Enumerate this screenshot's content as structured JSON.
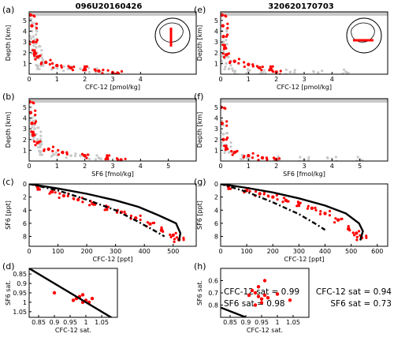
{
  "figure": {
    "titles": {
      "left": "096U20160426",
      "right": "320620170703"
    },
    "stats": {
      "left": [
        "CFC-12 sat = 0.99",
        "SF6 sat = 0.98"
      ],
      "right": [
        "CFC-12 sat = 0.94",
        "SF6 sat = 0.73"
      ]
    },
    "colors": {
      "observed": "#ff0000",
      "background": "#c8c8c8",
      "model": "#000000"
    },
    "legend": "none",
    "grid": false
  },
  "chart_data": [
    {
      "id": "a",
      "label": "(a)",
      "type": "scatter",
      "title": "096U20160426",
      "xlabel": "CFC-12 [pmol/kg]",
      "ylabel": "Depth [km]",
      "xlim": [
        0,
        6
      ],
      "ylim": [
        5.8,
        0
      ],
      "xticks": [
        "0",
        "1",
        "2",
        "3",
        "4"
      ],
      "yticks": [
        "1",
        "2",
        "3",
        "4",
        "5"
      ],
      "inset": {
        "type": "polar-map",
        "track": "meridional section"
      },
      "series": [
        {
          "name": "",
          "color": "#c8c8c8",
          "points": [
            [
              0.3,
              0.7
            ],
            [
              0.9,
              0.6
            ],
            [
              1.4,
              0.5
            ],
            [
              2.0,
              0.4
            ],
            [
              2.5,
              0.3
            ],
            [
              0.5,
              1.0
            ],
            [
              0.35,
              1.5
            ],
            [
              0.28,
              2.0
            ],
            [
              0.25,
              2.5
            ],
            [
              0.2,
              3.0
            ],
            [
              0.15,
              3.5
            ],
            [
              0.1,
              4.0
            ],
            [
              0.08,
              4.5
            ],
            [
              0.05,
              5.0
            ]
          ]
        },
        {
          "name": "",
          "color": "#ff0000",
          "points": [
            [
              0.05,
              5.5
            ],
            [
              0.1,
              4.5
            ],
            [
              0.15,
              3.0
            ],
            [
              0.2,
              2.0
            ],
            [
              0.3,
              1.6
            ],
            [
              0.6,
              1.1
            ],
            [
              1.0,
              0.8
            ],
            [
              1.5,
              0.6
            ],
            [
              2.0,
              0.5
            ],
            [
              2.5,
              0.3
            ],
            [
              3.0,
              0.15
            ],
            [
              3.2,
              0.05
            ]
          ]
        }
      ]
    },
    {
      "id": "b",
      "label": "(b)",
      "type": "scatter",
      "xlabel": "SF6 [fmol/kg]",
      "ylabel": "Depth [km]",
      "xlim": [
        0,
        6
      ],
      "ylim": [
        5.8,
        0
      ],
      "xticks": [
        "0",
        "1",
        "2",
        "3",
        "4",
        "5"
      ],
      "yticks": [
        "1",
        "2",
        "3",
        "4",
        "5"
      ],
      "series": [
        {
          "name": "",
          "color": "#c8c8c8",
          "points": [
            [
              0.4,
              0.8
            ],
            [
              0.9,
              0.6
            ],
            [
              1.5,
              0.5
            ],
            [
              2.0,
              0.4
            ],
            [
              2.5,
              0.3
            ],
            [
              0.4,
              1.5
            ],
            [
              0.3,
              2.0
            ],
            [
              0.25,
              2.5
            ],
            [
              0.2,
              3.0
            ],
            [
              0.15,
              3.5
            ],
            [
              0.1,
              4.0
            ]
          ]
        },
        {
          "name": "",
          "color": "#ff0000",
          "points": [
            [
              0.02,
              5.5
            ],
            [
              0.05,
              4.5
            ],
            [
              0.1,
              3.5
            ],
            [
              0.15,
              2.5
            ],
            [
              0.3,
              1.7
            ],
            [
              0.7,
              1.1
            ],
            [
              1.2,
              0.8
            ],
            [
              2.0,
              0.5
            ],
            [
              2.8,
              0.3
            ],
            [
              3.3,
              0.1
            ]
          ]
        }
      ]
    },
    {
      "id": "c",
      "label": "(c)",
      "type": "scatter",
      "xlabel": "CFC-12 [ppt]",
      "ylabel": "SF6 [ppt]",
      "xlim": [
        0,
        580
      ],
      "ylim": [
        0,
        9.5
      ],
      "xticks": [
        "0",
        "100",
        "200",
        "300",
        "400",
        "500"
      ],
      "yticks": [
        "0",
        "2",
        "4",
        "6",
        "8"
      ],
      "series": [
        {
          "name": "",
          "color": "#ff0000",
          "points": [
            [
              30,
              0.5
            ],
            [
              80,
              1.2
            ],
            [
              120,
              1.8
            ],
            [
              170,
              2.4
            ],
            [
              220,
              3.0
            ],
            [
              270,
              3.6
            ],
            [
              320,
              4.3
            ],
            [
              370,
              5.2
            ],
            [
              420,
              6.1
            ],
            [
              460,
              7.0
            ],
            [
              500,
              7.8
            ],
            [
              520,
              8.5
            ]
          ]
        },
        {
          "name": "",
          "color": "#000000",
          "line": "dash",
          "points": [
            [
              0,
              0
            ],
            [
              100,
              1.0
            ],
            [
              200,
              2.4
            ],
            [
              300,
              4.0
            ],
            [
              380,
              5.8
            ],
            [
              430,
              7.0
            ],
            [
              470,
              8.0
            ]
          ]
        },
        {
          "name": "",
          "color": "#000000",
          "line": "solid",
          "points": [
            [
              0,
              0
            ],
            [
              100,
              0.7
            ],
            [
              200,
              1.5
            ],
            [
              300,
              2.5
            ],
            [
              380,
              3.5
            ],
            [
              450,
              4.8
            ],
            [
              510,
              6.0
            ],
            [
              525,
              7.5
            ],
            [
              520,
              8.7
            ]
          ]
        }
      ]
    },
    {
      "id": "d",
      "label": "(d)",
      "type": "scatter",
      "xlabel": "CFC-12 sat.",
      "ylabel": "SF6 sat.",
      "xlim": [
        0.82,
        1.1
      ],
      "ylim": [
        0.82,
        1.08
      ],
      "xticks": [
        "0.85",
        "0.9",
        "0.95",
        "1",
        "1.05"
      ],
      "yticks": [
        "0.85",
        "0.9",
        "0.95",
        "1",
        "1.05"
      ],
      "series": [
        {
          "name": "",
          "color": "#ff0000",
          "points": [
            [
              0.97,
              0.98
            ],
            [
              0.99,
              1.0
            ],
            [
              1.0,
              0.99
            ],
            [
              0.98,
              0.97
            ],
            [
              1.01,
              1.0
            ],
            [
              0.99,
              0.96
            ],
            [
              0.96,
              0.99
            ],
            [
              1.02,
              0.98
            ],
            [
              0.9,
              0.95
            ]
          ]
        },
        {
          "name": "",
          "color": "#000000",
          "line": "solid",
          "points": [
            [
              0.82,
              0.82
            ],
            [
              1.1,
              1.1
            ]
          ]
        }
      ]
    },
    {
      "id": "e",
      "label": "(e)",
      "type": "scatter",
      "title": "320620170703",
      "xlabel": "CFC-12 [pmol/kg]",
      "ylabel": "Depth [km]",
      "xlim": [
        0,
        6
      ],
      "ylim": [
        5.8,
        0
      ],
      "xticks": [
        "0",
        "1",
        "2",
        "3",
        "4"
      ],
      "yticks": [
        "1",
        "2",
        "3",
        "4",
        "5"
      ],
      "inset": {
        "type": "polar-map",
        "track": "zonal section"
      },
      "series": [
        {
          "name": "",
          "color": "#c8c8c8",
          "points": [
            [
              0.5,
              0.2
            ],
            [
              1.5,
              0.15
            ],
            [
              2.5,
              0.2
            ],
            [
              3.5,
              0.15
            ],
            [
              4.5,
              0.2
            ],
            [
              1.0,
              0.3
            ],
            [
              0.3,
              0.5
            ],
            [
              0.2,
              1.0
            ],
            [
              0.15,
              1.5
            ],
            [
              0.1,
              2.0
            ],
            [
              0.1,
              3.0
            ],
            [
              0.05,
              4.0
            ]
          ]
        },
        {
          "name": "",
          "color": "#ff0000",
          "points": [
            [
              0.05,
              5.5
            ],
            [
              0.08,
              4.5
            ],
            [
              0.1,
              3.5
            ],
            [
              0.15,
              2.5
            ],
            [
              0.2,
              1.8
            ],
            [
              0.5,
              1.2
            ],
            [
              1.0,
              0.9
            ],
            [
              1.4,
              0.6
            ],
            [
              1.8,
              0.5
            ],
            [
              2.0,
              0.2
            ]
          ]
        }
      ]
    },
    {
      "id": "f",
      "label": "(f)",
      "type": "scatter",
      "xlabel": "SF6 [fmol/kg]",
      "ylabel": "Depth [km]",
      "xlim": [
        0,
        6
      ],
      "ylim": [
        5.8,
        0
      ],
      "xticks": [
        "0",
        "1",
        "2",
        "3",
        "4",
        "5"
      ],
      "yticks": [
        "1",
        "2",
        "3",
        "4",
        "5"
      ],
      "series": [
        {
          "name": "",
          "color": "#c8c8c8",
          "points": [
            [
              1.0,
              0.15
            ],
            [
              2.0,
              0.2
            ],
            [
              3.0,
              0.15
            ],
            [
              4.0,
              0.2
            ],
            [
              5.0,
              0.15
            ],
            [
              0.8,
              0.4
            ],
            [
              0.3,
              0.8
            ],
            [
              0.2,
              1.5
            ],
            [
              0.1,
              2.5
            ],
            [
              0.05,
              3.5
            ]
          ]
        },
        {
          "name": "",
          "color": "#ff0000",
          "points": [
            [
              0.02,
              5.0
            ],
            [
              0.05,
              3.5
            ],
            [
              0.1,
              2.0
            ],
            [
              0.2,
              1.2
            ],
            [
              0.5,
              0.8
            ],
            [
              1.0,
              0.5
            ],
            [
              1.5,
              0.3
            ],
            [
              2.0,
              0.15
            ]
          ]
        }
      ]
    },
    {
      "id": "g",
      "label": "(g)",
      "type": "scatter",
      "xlabel": "CFC-12 [ppt]",
      "ylabel": "SF6 [ppt]",
      "xlim": [
        0,
        640
      ],
      "ylim": [
        0,
        9.5
      ],
      "xticks": [
        "0",
        "100",
        "200",
        "300",
        "400",
        "500",
        "600"
      ],
      "yticks": [
        "0",
        "2",
        "4",
        "6",
        "8"
      ],
      "series": [
        {
          "name": "",
          "color": "#ff0000",
          "points": [
            [
              30,
              0.4
            ],
            [
              100,
              1.0
            ],
            [
              150,
              1.5
            ],
            [
              200,
              2.0
            ],
            [
              250,
              2.5
            ],
            [
              300,
              3.0
            ],
            [
              350,
              3.7
            ],
            [
              400,
              4.5
            ],
            [
              450,
              5.5
            ],
            [
              490,
              6.8
            ],
            [
              520,
              7.5
            ],
            [
              540,
              8.2
            ]
          ]
        },
        {
          "name": "",
          "color": "#000000",
          "line": "dash",
          "points": [
            [
              0,
              0
            ],
            [
              100,
              1.2
            ],
            [
              200,
              2.8
            ],
            [
              300,
              4.6
            ],
            [
              360,
              6.0
            ],
            [
              400,
              7.0
            ]
          ]
        },
        {
          "name": "",
          "color": "#000000",
          "line": "solid",
          "points": [
            [
              0,
              0
            ],
            [
              100,
              0.6
            ],
            [
              200,
              1.3
            ],
            [
              300,
              2.2
            ],
            [
              400,
              3.3
            ],
            [
              480,
              4.5
            ],
            [
              530,
              6.0
            ],
            [
              545,
              7.2
            ],
            [
              535,
              8.6
            ]
          ]
        }
      ]
    },
    {
      "id": "h",
      "label": "(h)",
      "type": "scatter",
      "xlabel": "CFC-12 sat.",
      "ylabel": "SF6 sat.",
      "xlim": [
        0.82,
        1.1
      ],
      "ylim": [
        0.5,
        0.9
      ],
      "xticks": [
        "0.85",
        "0.9",
        "0.95",
        "1",
        "1.05"
      ],
      "yticks": [
        "0.6",
        "0.7",
        "0.8"
      ],
      "series": [
        {
          "name": "",
          "color": "#ff0000",
          "points": [
            [
              0.94,
              0.73
            ],
            [
              0.95,
              0.75
            ],
            [
              0.93,
              0.7
            ],
            [
              0.96,
              0.72
            ],
            [
              0.95,
              0.78
            ],
            [
              0.92,
              0.68
            ],
            [
              0.97,
              0.74
            ],
            [
              0.94,
              0.65
            ],
            [
              0.93,
              0.8
            ],
            [
              0.96,
              0.6
            ],
            [
              1.0,
              0.71
            ],
            [
              1.04,
              0.76
            ],
            [
              0.91,
              0.72
            ]
          ]
        },
        {
          "name": "",
          "color": "#000000",
          "line": "solid",
          "points": [
            [
              0.82,
              0.82
            ],
            [
              0.9,
              0.9
            ]
          ]
        }
      ]
    }
  ]
}
